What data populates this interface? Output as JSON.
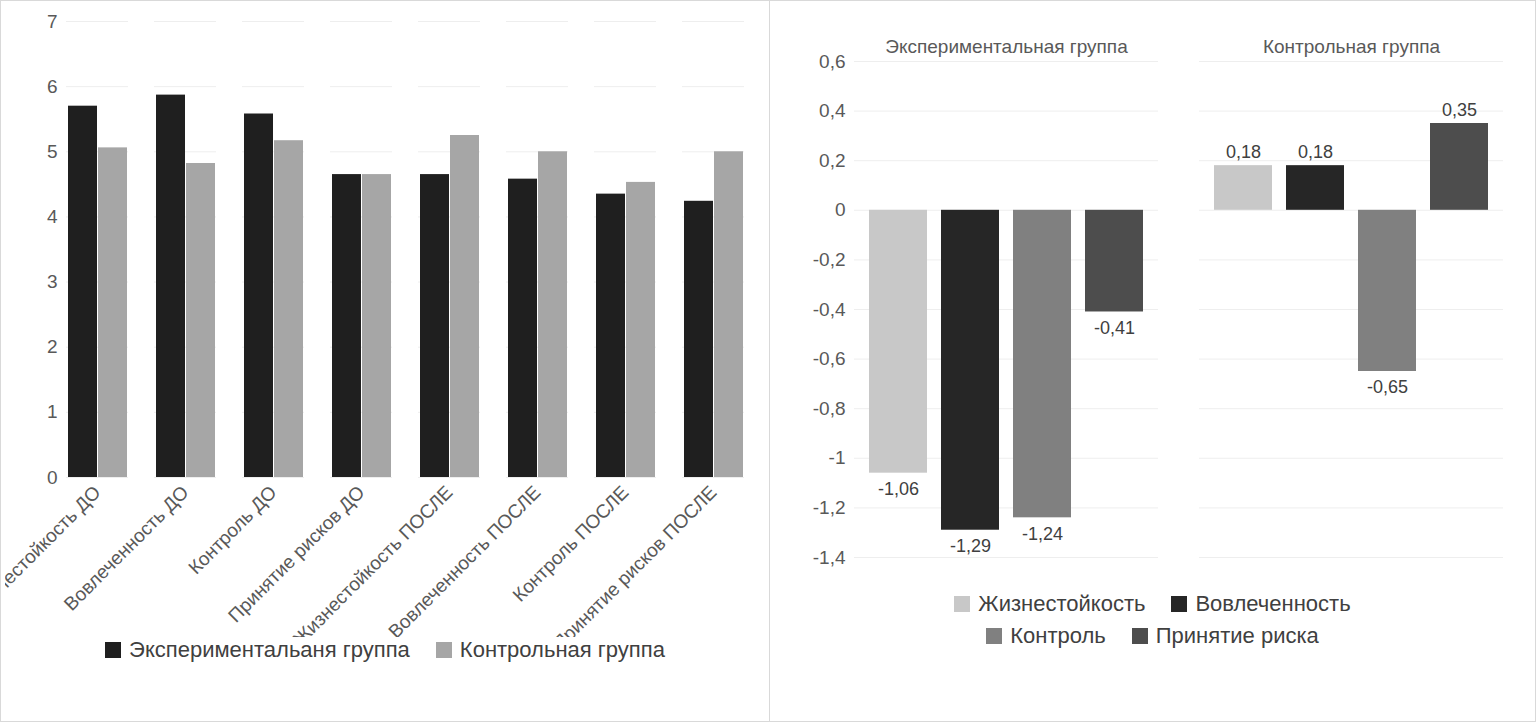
{
  "chart_data": [
    {
      "type": "bar",
      "categories": [
        "Жизнестойкость ДО",
        "Вовлеченность ДО",
        "Контроль ДО",
        "Принятие рисков ДО",
        "Жизнестойкость ПОСЛЕ",
        "Вовлеченность ПОСЛЕ",
        "Контроль ПОСЛЕ",
        "Принятие рисков ПОСЛЕ"
      ],
      "series": [
        {
          "name": "Экспериментальаня группа",
          "color": "#1f1f1f",
          "values": [
            5.7,
            5.87,
            5.58,
            4.65,
            4.65,
            4.58,
            4.35,
            4.24
          ]
        },
        {
          "name": "Контрольная группа",
          "color": "#a6a6a6",
          "values": [
            5.06,
            4.82,
            5.17,
            4.65,
            5.25,
            5.0,
            4.53,
            5.0
          ]
        }
      ],
      "ylim": [
        0,
        7
      ],
      "yticks": [
        0,
        1,
        2,
        3,
        4,
        5,
        6,
        7
      ],
      "grid": true,
      "legend": "bottom",
      "data_labels": false
    },
    {
      "type": "bar",
      "categories": [
        "Экспериментальная группа",
        "Контрольная группа"
      ],
      "series": [
        {
          "name": "Жизнестойкость",
          "color": "#c8c8c8",
          "values": [
            -1.06,
            0.18
          ],
          "value_labels": [
            "-1,06",
            "0,18"
          ]
        },
        {
          "name": "Вовлеченность",
          "color": "#262626",
          "values": [
            -1.29,
            0.18
          ],
          "value_labels": [
            "-1,29",
            "0,18"
          ]
        },
        {
          "name": "Контроль",
          "color": "#808080",
          "values": [
            -1.24,
            -0.65
          ],
          "value_labels": [
            "-1,24",
            "-0,65"
          ]
        },
        {
          "name": "Принятие риска",
          "color": "#4d4d4d",
          "values": [
            -0.41,
            0.35
          ],
          "value_labels": [
            "-0,41",
            "0,35"
          ]
        }
      ],
      "ylim": [
        -1.4,
        0.6
      ],
      "yticks": [
        {
          "value": -1.4,
          "label": "-1,4"
        },
        {
          "value": -1.2,
          "label": "-1,2"
        },
        -1,
        {
          "value": -0.8,
          "label": "-0,8"
        },
        {
          "value": -0.6,
          "label": "-0,6"
        },
        {
          "value": -0.4,
          "label": "-0,4"
        },
        {
          "value": -0.2,
          "label": "-0,2"
        },
        0,
        {
          "value": 0.2,
          "label": "0,2"
        },
        {
          "value": 0.4,
          "label": "0,4"
        },
        {
          "value": 0.6,
          "label": "0,6"
        }
      ],
      "grid": true,
      "legend": "bottom",
      "data_labels": true
    }
  ]
}
